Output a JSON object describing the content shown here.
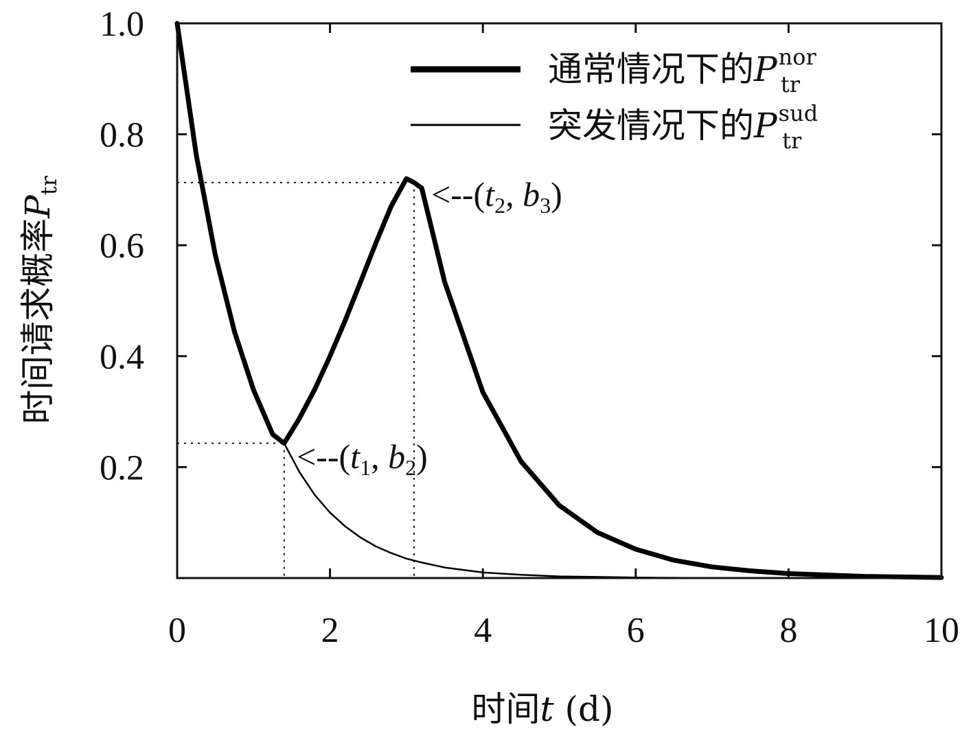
{
  "chart_data": {
    "type": "line",
    "xlabel": {
      "text": "时间",
      "var": "t",
      "unit": "(d)"
    },
    "ylabel": {
      "text": "时间请求概率",
      "var": "P",
      "sub": "tr"
    },
    "xlim": [
      0,
      10
    ],
    "ylim": [
      0,
      1
    ],
    "xticks": [
      "0",
      "2",
      "4",
      "6",
      "8",
      "10"
    ],
    "xtick_values": [
      0,
      2,
      4,
      6,
      8,
      10
    ],
    "yticks": [
      "0.2",
      "0.4",
      "0.6",
      "0.8",
      "1.0"
    ],
    "ytick_values": [
      0.2,
      0.4,
      0.6,
      0.8,
      1.0
    ],
    "grid": false,
    "legend_position": "top-right",
    "series": [
      {
        "name": "通常情况下的",
        "name_var": "P",
        "name_sub": "tr",
        "name_sup": "nor",
        "style": "thick",
        "x": [
          0,
          0.25,
          0.5,
          0.75,
          1.0,
          1.25,
          1.4,
          1.6,
          1.8,
          2.0,
          2.2,
          2.4,
          2.6,
          2.8,
          3.0,
          3.1,
          3.2,
          3.5,
          4.0,
          4.5,
          5.0,
          5.5,
          6.0,
          6.5,
          7.0,
          7.5,
          8.0,
          9.0,
          10.0
        ],
        "y": [
          1.0,
          0.763,
          0.582,
          0.444,
          0.339,
          0.259,
          0.243,
          0.288,
          0.34,
          0.4,
          0.465,
          0.534,
          0.604,
          0.67,
          0.72,
          0.713,
          0.703,
          0.534,
          0.335,
          0.21,
          0.131,
          0.082,
          0.052,
          0.032,
          0.02,
          0.013,
          0.008,
          0.003,
          0.001
        ]
      },
      {
        "name": "突发情况下的",
        "name_var": "P",
        "name_sub": "tr",
        "name_sup": "sud",
        "style": "thin",
        "x": [
          0,
          0.25,
          0.5,
          0.75,
          1.0,
          1.25,
          1.4,
          1.6,
          1.8,
          2.0,
          2.2,
          2.4,
          2.6,
          2.8,
          3.0,
          3.2,
          3.5,
          4.0,
          4.5,
          5.0,
          5.5,
          6.0,
          7.0,
          8.0,
          9.0,
          10.0
        ],
        "y": [
          1.0,
          0.763,
          0.582,
          0.444,
          0.339,
          0.259,
          0.243,
          0.191,
          0.15,
          0.118,
          0.093,
          0.073,
          0.057,
          0.045,
          0.035,
          0.028,
          0.019,
          0.01,
          0.006,
          0.003,
          0.002,
          0.001,
          0.0,
          0.0,
          0.0,
          0.0
        ]
      }
    ],
    "annotations": [
      {
        "x": 1.4,
        "y": 0.243,
        "arrow": "<--",
        "t": "t",
        "t_sub": "1",
        "b": "b",
        "b_sub": "2"
      },
      {
        "x": 3.1,
        "y": 0.713,
        "arrow": "<--",
        "t": "t",
        "t_sub": "2",
        "b": "b",
        "b_sub": "3"
      }
    ]
  }
}
